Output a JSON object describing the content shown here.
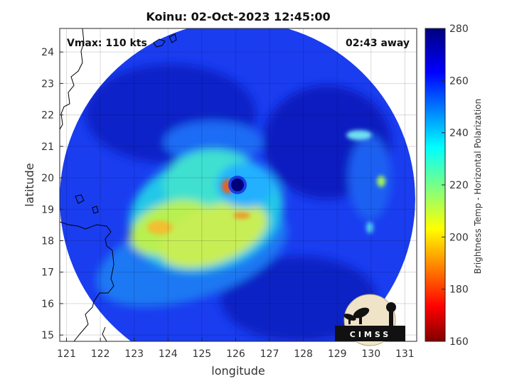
{
  "title": "Koinu: 02-Oct-2023 12:45:00",
  "annotations": {
    "vmax": "Vmax: 110 kts",
    "time_away": "02:43 away"
  },
  "axes": {
    "xlabel": "longitude",
    "ylabel": "latitude",
    "xticks": [
      "121",
      "122",
      "123",
      "124",
      "125",
      "126",
      "127",
      "128",
      "129",
      "130",
      "131"
    ],
    "yticks": [
      "24",
      "23",
      "22",
      "21",
      "20",
      "19",
      "18",
      "17",
      "16",
      "15"
    ],
    "xlim": [
      120.8,
      131.35
    ],
    "ylim": [
      14.8,
      24.75
    ]
  },
  "colorbar": {
    "label": "Brightness Temp - Horizontal Polarization",
    "ticks": [
      "280",
      "260",
      "240",
      "220",
      "200",
      "180",
      "160"
    ],
    "range": [
      160,
      280
    ],
    "colormap": "jet"
  },
  "logo": {
    "text": "CIMSS"
  },
  "storm": {
    "name": "Koinu",
    "eye_lon": 126.2,
    "eye_lat": 19.9
  },
  "colors": {
    "accent": "#0000cc",
    "eye": "#00007a",
    "land_outline": "#000000"
  }
}
